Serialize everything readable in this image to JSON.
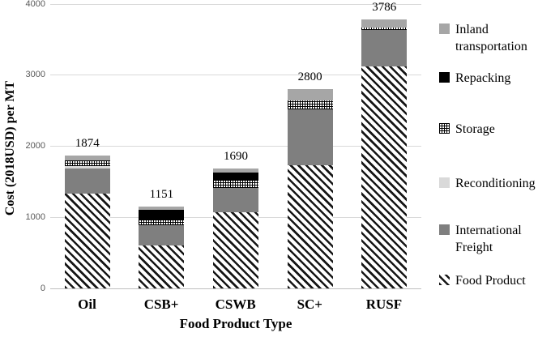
{
  "figure": {
    "y_axis_title": "Cost (2018USD) per MT",
    "x_axis_title": "Food Product Type"
  },
  "legend": {
    "items": [
      {
        "label": "Inland transportation",
        "swatch": "inland"
      },
      {
        "label": "Repacking",
        "swatch": "repacking"
      },
      {
        "label": "Storage",
        "swatch": "storage"
      },
      {
        "label": "Reconditioning",
        "swatch": "reconditioning"
      },
      {
        "label": "International Freight",
        "swatch": "intl-freight"
      },
      {
        "label": "Food Product",
        "swatch": "food-product"
      }
    ]
  },
  "colors": {
    "inland_transportation": "#a6a6a6",
    "repacking": "#000000",
    "storage_pattern": "black grid on white",
    "reconditioning": "#d9d9d9",
    "international_freight": "#7f7f7f",
    "food_product_pattern": "black diagonal stripes on white",
    "gridline": "#d9d9d9",
    "axis_line": "#bfbfbf",
    "tick_text": "#595959"
  },
  "chart_data": {
    "type": "bar",
    "stacked": true,
    "title": "",
    "xlabel": "Food Product Type",
    "ylabel": "Cost (2018USD) per MT",
    "ylim": [
      0,
      4000
    ],
    "yticks": [
      0,
      1000,
      2000,
      3000,
      4000
    ],
    "grid": true,
    "legend_position": "right",
    "categories": [
      "Oil",
      "CSB+",
      "CSWB",
      "SC+",
      "RUSF"
    ],
    "totals": [
      1874,
      1151,
      1690,
      2800,
      3786
    ],
    "series": [
      {
        "name": "Food Product",
        "swatch": "food-product",
        "values": [
          1330,
          600,
          1075,
          1735,
          3120
        ]
      },
      {
        "name": "International Freight",
        "swatch": "intl-freight",
        "values": [
          355,
          290,
          340,
          780,
          512
        ]
      },
      {
        "name": "Reconditioning",
        "swatch": "reconditioning",
        "values": [
          40,
          0,
          0,
          0,
          0
        ]
      },
      {
        "name": "Storage",
        "swatch": "storage",
        "values": [
          75,
          82,
          95,
          133,
          40
        ]
      },
      {
        "name": "Repacking",
        "swatch": "repacking",
        "values": [
          0,
          134,
          115,
          0,
          0
        ]
      },
      {
        "name": "Inland transportation",
        "swatch": "inland",
        "values": [
          74,
          45,
          65,
          152,
          114
        ]
      }
    ]
  }
}
